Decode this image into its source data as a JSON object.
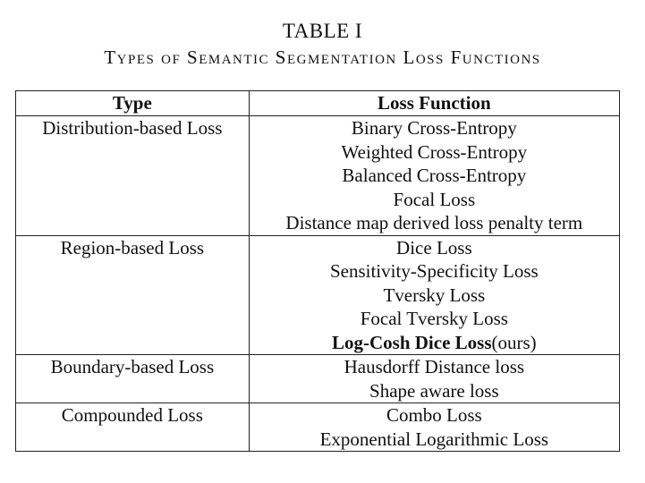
{
  "caption": {
    "number": "TABLE I",
    "title": "Types of Semantic Segmentation Loss Functions"
  },
  "table": {
    "headers": [
      "Type",
      "Loss Function"
    ],
    "groups": [
      {
        "type": "Distribution-based Loss",
        "functions": [
          "Binary Cross-Entropy",
          "Weighted Cross-Entropy",
          "Balanced Cross-Entropy",
          "Focal Loss",
          "Distance map derived loss penalty term"
        ]
      },
      {
        "type": "Region-based Loss",
        "functions": [
          "Dice Loss",
          "Sensitivity-Specificity Loss",
          "Tversky Loss",
          "Focal Tversky Loss"
        ],
        "highlight": {
          "bold": "Log-Cosh Dice Loss",
          "suffix": "(ours)"
        }
      },
      {
        "type": "Boundary-based Loss",
        "functions": [
          "Hausdorff Distance loss",
          "Shape aware loss"
        ]
      },
      {
        "type": "Compounded Loss",
        "functions": [
          "Combo Loss",
          "Exponential Logarithmic Loss"
        ]
      }
    ]
  }
}
